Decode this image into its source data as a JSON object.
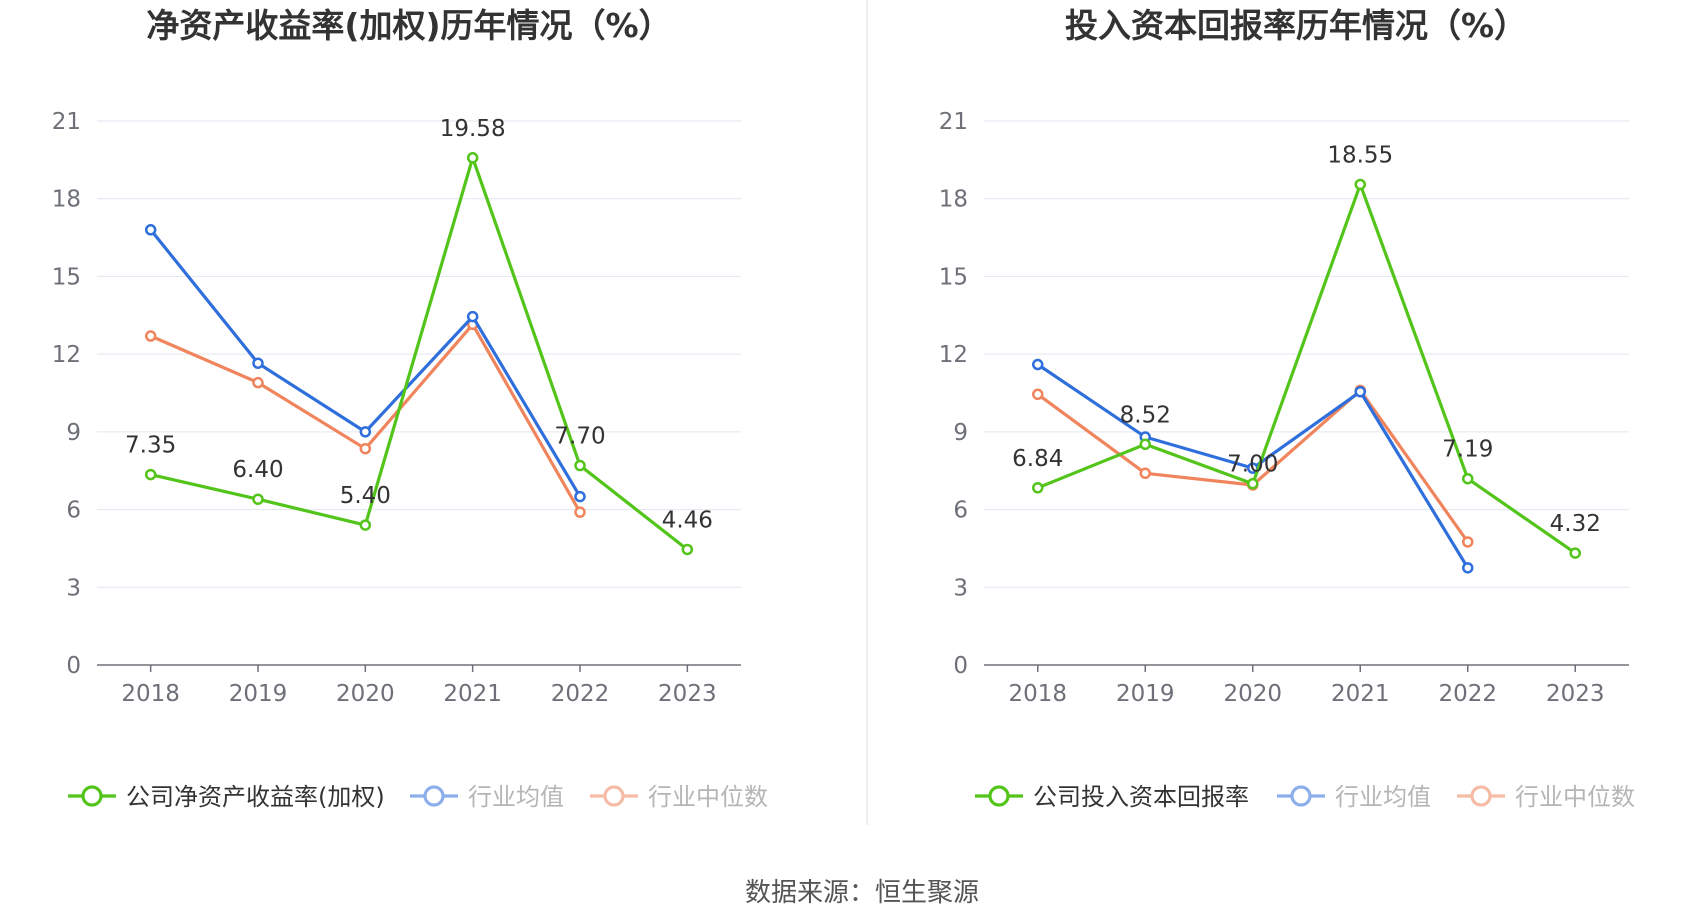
{
  "source": "数据来源：恒生聚源",
  "chart_data": [
    {
      "type": "line",
      "title": "净资产收益率(加权)历年情况（%）",
      "categories": [
        "2018",
        "2019",
        "2020",
        "2021",
        "2022",
        "2023"
      ],
      "ylim": [
        0,
        21
      ],
      "yticks": [
        "0",
        "3",
        "6",
        "9",
        "12",
        "15",
        "18",
        "21"
      ],
      "grid": true,
      "legend_position": "bottom",
      "series": [
        {
          "name": "公司净资产收益率(加权)",
          "color": "#52c41a",
          "values": [
            7.35,
            6.4,
            5.4,
            19.58,
            7.7,
            4.46
          ],
          "labels": [
            "7.35",
            "6.40",
            "5.40",
            "19.58",
            "7.70",
            "4.46"
          ]
        },
        {
          "name": "行业均值",
          "color": "#2f6fdc",
          "values": [
            16.8,
            11.65,
            9.0,
            13.45,
            6.5,
            null
          ]
        },
        {
          "name": "行业中位数",
          "color": "#f0845c",
          "values": [
            12.7,
            10.9,
            8.35,
            13.15,
            5.9,
            null
          ]
        }
      ]
    },
    {
      "type": "line",
      "title": "投入资本回报率历年情况（%）",
      "categories": [
        "2018",
        "2019",
        "2020",
        "2021",
        "2022",
        "2023"
      ],
      "ylim": [
        0,
        21
      ],
      "yticks": [
        "0",
        "3",
        "6",
        "9",
        "12",
        "15",
        "18",
        "21"
      ],
      "grid": true,
      "legend_position": "bottom",
      "series": [
        {
          "name": "公司投入资本回报率",
          "color": "#52c41a",
          "values": [
            6.84,
            8.52,
            7.0,
            18.55,
            7.19,
            4.32
          ],
          "labels": [
            "6.84",
            "8.52",
            "7.00",
            "18.55",
            "7.19",
            "4.32"
          ]
        },
        {
          "name": "行业均值",
          "color": "#2f6fdc",
          "values": [
            11.6,
            8.8,
            7.6,
            10.55,
            3.75,
            null
          ]
        },
        {
          "name": "行业中位数",
          "color": "#f0845c",
          "values": [
            10.45,
            7.4,
            6.95,
            10.6,
            4.75,
            null
          ]
        }
      ]
    }
  ]
}
